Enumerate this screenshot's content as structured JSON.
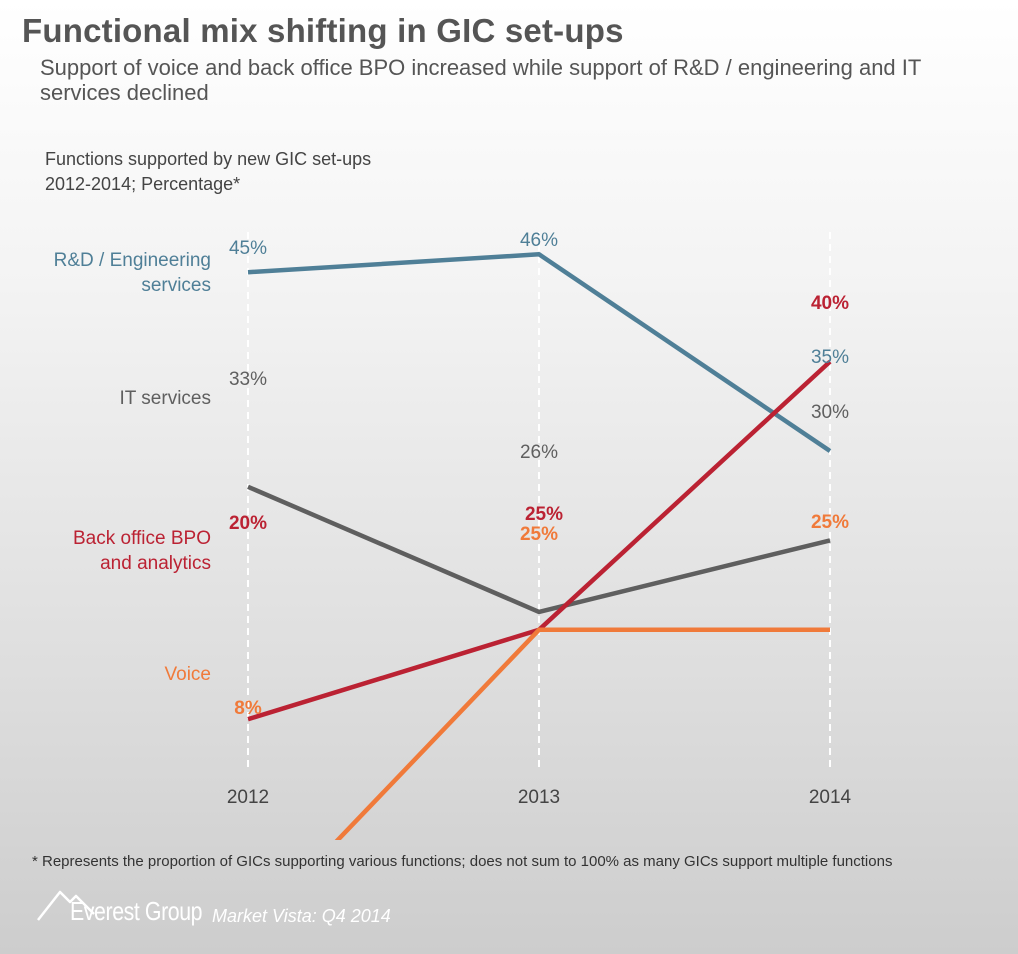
{
  "title": "Functional mix shifting in GIC set-ups",
  "subtitle": "Support of voice and back office BPO increased while support of R&D / engineering and IT services declined",
  "chart_caption": {
    "line1": "Functions supported by new GIC set-ups",
    "line2": "2012-2014; Percentage*"
  },
  "chart_data": {
    "type": "line",
    "title": "Functions supported by new GIC set-ups",
    "subtitle": "2012-2014; Percentage*",
    "x": [
      "2012",
      "2013",
      "2014"
    ],
    "ylim": [
      0,
      50
    ],
    "grid": "vertical dashed lines at each year",
    "series": [
      {
        "name": "R&D / Engineering services",
        "label_lines": [
          "R&D / Engineering",
          "services"
        ],
        "values": [
          45,
          46,
          35
        ],
        "labels": [
          "45%",
          "46%",
          "35%"
        ],
        "color": "#4f7f97",
        "bold_labels": false
      },
      {
        "name": "IT services",
        "label_lines": [
          "IT services"
        ],
        "values": [
          33,
          26,
          30
        ],
        "labels": [
          "33%",
          "26%",
          "30%"
        ],
        "color": "#5f5f5f",
        "bold_labels": false
      },
      {
        "name": "Back office BPO and analytics",
        "label_lines": [
          "Back office BPO",
          "and analytics"
        ],
        "values": [
          20,
          25,
          40
        ],
        "labels": [
          "20%",
          "25%",
          "40%"
        ],
        "color": "#bb2233",
        "bold_labels": true
      },
      {
        "name": "Voice",
        "label_lines": [
          "Voice"
        ],
        "values": [
          8,
          25,
          25
        ],
        "labels": [
          "8%",
          "25%",
          "25%"
        ],
        "color": "#f07a3a",
        "bold_labels": true
      }
    ]
  },
  "footnote": "* Represents the proportion of GICs supporting various functions; does not sum to 100% as many GICs support multiple functions",
  "brand": {
    "name": "Everest Group",
    "tagline": "Market Vista: Q4 2014"
  }
}
